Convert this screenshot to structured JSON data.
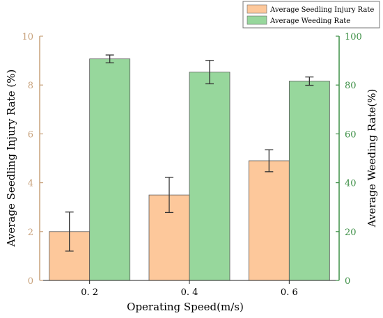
{
  "chart_data": {
    "type": "bar",
    "categories": [
      "0. 2",
      "0. 4",
      "0. 6"
    ],
    "xlabel": "Operating Speed(m/s)",
    "left_axis": {
      "label": "Average Seedling Injury Rate (%)",
      "ylim": [
        0,
        10
      ],
      "ticks": [
        "0",
        "2",
        "4",
        "6",
        "8",
        "10"
      ],
      "color": "#c8a27c"
    },
    "right_axis": {
      "label": "Average Weeding Rate(%)",
      "ylim": [
        0,
        100
      ],
      "ticks": [
        "0",
        "20",
        "40",
        "60",
        "80",
        "100"
      ],
      "color": "#3c8f45"
    },
    "series": [
      {
        "name": "Average Seedling Injury Rate",
        "axis": "left",
        "color": "#fdc89b",
        "values": [
          2.0,
          3.5,
          4.9
        ],
        "errors": [
          0.8,
          0.72,
          0.45
        ]
      },
      {
        "name": "Average Weeding Rate",
        "axis": "right",
        "color": "#97d79c",
        "values": [
          90.7,
          85.3,
          81.6
        ],
        "errors": [
          1.6,
          4.8,
          1.7
        ]
      }
    ],
    "legend_position": "top-right",
    "grid": false
  }
}
